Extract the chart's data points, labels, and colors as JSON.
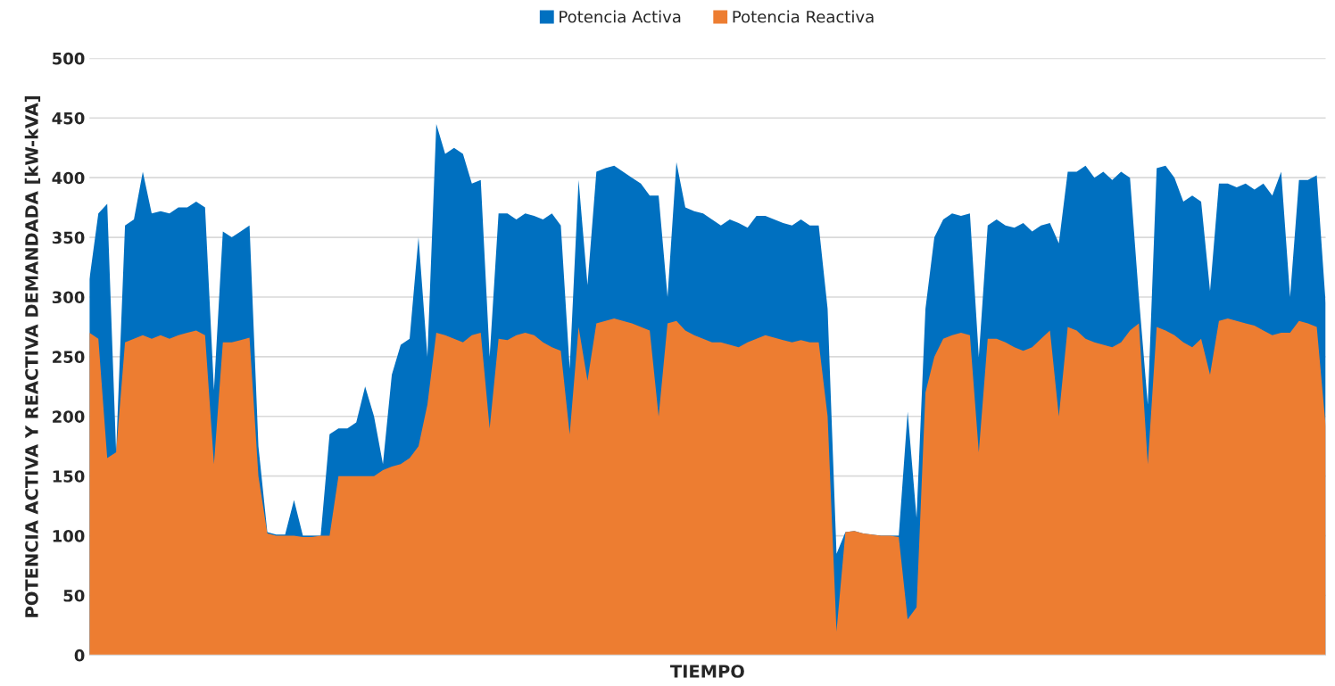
{
  "chart_data": {
    "type": "area",
    "xlabel": "TIEMPO",
    "ylabel": "POTENCIA ACTIVA Y REACTIVA DEMANDADA [kW-kVA]",
    "categories": [
      null,
      null,
      null,
      null,
      null,
      null,
      null,
      null,
      null,
      null,
      null,
      null,
      null,
      null,
      null,
      null,
      null,
      null,
      null,
      null,
      null,
      null,
      null,
      null,
      null,
      null,
      null,
      null,
      null,
      null,
      null,
      null,
      null,
      null,
      null,
      null,
      null,
      null,
      null,
      null,
      null,
      null,
      null,
      null,
      null,
      null,
      null,
      null,
      null,
      null,
      null,
      null,
      null,
      null,
      null,
      null,
      null,
      null,
      null,
      null,
      null,
      null,
      null,
      null,
      null,
      null,
      null,
      null,
      null,
      null,
      null,
      null,
      null,
      null,
      null,
      null,
      null,
      null,
      null,
      null,
      null,
      null,
      null,
      null,
      null,
      null,
      null,
      null,
      null,
      null,
      null,
      null,
      null,
      null,
      null,
      null,
      null,
      null,
      null,
      null,
      null,
      null,
      null,
      null,
      null,
      null,
      null,
      null,
      null,
      null,
      null,
      null,
      null,
      null,
      null,
      null,
      null,
      null,
      null,
      null,
      null,
      null,
      null,
      null,
      null,
      null,
      null,
      null,
      null,
      null,
      null,
      null,
      null,
      null,
      null,
      null,
      null,
      null,
      null,
      null
    ],
    "series": [
      {
        "name": "Potencia Activa",
        "color": "#0070c0",
        "values": [
          315,
          370,
          378,
          170,
          360,
          365,
          405,
          370,
          372,
          370,
          375,
          375,
          380,
          375,
          222,
          355,
          350,
          355,
          360,
          175,
          103,
          101,
          101,
          130,
          100,
          100,
          100,
          185,
          190,
          190,
          195,
          225,
          200,
          160,
          235,
          260,
          265,
          350,
          250,
          445,
          420,
          425,
          420,
          395,
          398,
          250,
          370,
          370,
          365,
          370,
          368,
          365,
          370,
          360,
          240,
          398,
          310,
          405,
          408,
          410,
          405,
          400,
          395,
          385,
          385,
          300,
          413,
          375,
          372,
          370,
          365,
          360,
          365,
          362,
          358,
          368,
          368,
          365,
          362,
          360,
          365,
          360,
          360,
          290,
          85,
          103,
          104,
          102,
          101,
          100,
          100,
          100,
          204,
          115,
          290,
          350,
          365,
          370,
          368,
          370,
          250,
          360,
          365,
          360,
          358,
          362,
          355,
          360,
          362,
          345,
          405,
          405,
          410,
          400,
          405,
          398,
          405,
          400,
          300,
          210,
          408,
          410,
          400,
          380,
          385,
          380,
          305,
          395,
          395,
          392,
          395,
          390,
          395,
          385,
          405,
          300,
          398,
          398,
          402,
          295
        ]
      },
      {
        "name": "Potencia Reactiva",
        "color": "#ed7d31",
        "values": [
          270,
          265,
          165,
          170,
          262,
          265,
          268,
          265,
          268,
          265,
          268,
          270,
          272,
          268,
          160,
          262,
          262,
          264,
          266,
          150,
          102,
          100,
          100,
          100,
          99,
          99,
          100,
          100,
          150,
          150,
          150,
          150,
          150,
          155,
          158,
          160,
          165,
          175,
          210,
          270,
          268,
          265,
          262,
          268,
          270,
          190,
          265,
          264,
          268,
          270,
          268,
          262,
          258,
          255,
          185,
          275,
          230,
          278,
          280,
          282,
          280,
          278,
          275,
          272,
          200,
          278,
          280,
          272,
          268,
          265,
          262,
          262,
          260,
          258,
          262,
          265,
          268,
          266,
          264,
          262,
          264,
          262,
          262,
          200,
          20,
          103,
          104,
          102,
          101,
          100,
          100,
          99,
          30,
          40,
          220,
          250,
          265,
          268,
          270,
          268,
          170,
          265,
          265,
          262,
          258,
          255,
          258,
          265,
          272,
          200,
          275,
          272,
          265,
          262,
          260,
          258,
          262,
          272,
          278,
          160,
          275,
          272,
          268,
          262,
          258,
          265,
          235,
          280,
          282,
          280,
          278,
          276,
          272,
          268,
          270,
          270,
          280,
          278,
          275,
          192
        ]
      }
    ],
    "ylim": [
      0,
      500
    ],
    "yticks": [
      0,
      50,
      100,
      150,
      200,
      250,
      300,
      350,
      400,
      450,
      500
    ],
    "grid": "y",
    "legend": "top"
  }
}
